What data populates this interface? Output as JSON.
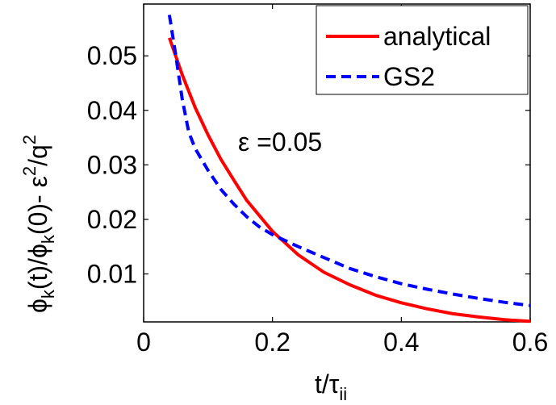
{
  "chart_data": {
    "type": "line",
    "xlabel": {
      "base": "t/τ",
      "sub": "ii"
    },
    "ylabel": {
      "parts": [
        "ϕ",
        "k",
        "(t)/ϕ",
        "k",
        "(0)- ε",
        "2",
        "/q",
        "2"
      ]
    },
    "xlim": [
      0,
      0.6
    ],
    "ylim": [
      0.0012,
      0.0595
    ],
    "x_ticks": [
      0,
      0.2,
      0.4,
      0.6
    ],
    "x_tick_labels": [
      "0",
      "0.2",
      "0.4",
      "0.6"
    ],
    "y_ticks": [
      0.01,
      0.02,
      0.03,
      0.04,
      0.05
    ],
    "y_tick_labels": [
      "0.01",
      "0.02",
      "0.03",
      "0.04",
      "0.05"
    ],
    "grid": false,
    "legend_position": "top-right",
    "annotation": "ε =0.05",
    "series": [
      {
        "name": "analytical",
        "color": "#ff0000",
        "style": "solid",
        "x": [
          0.04,
          0.06,
          0.08,
          0.1,
          0.12,
          0.14,
          0.16,
          0.2,
          0.24,
          0.28,
          0.32,
          0.36,
          0.4,
          0.44,
          0.48,
          0.52,
          0.56,
          0.6
        ],
        "y": [
          0.0533,
          0.0465,
          0.0405,
          0.0355,
          0.031,
          0.0272,
          0.0235,
          0.0178,
          0.0135,
          0.0103,
          0.008,
          0.0061,
          0.0047,
          0.0036,
          0.0027,
          0.0021,
          0.0016,
          0.0013
        ]
      },
      {
        "name": "GS2",
        "color": "#0000ff",
        "style": "dashed",
        "x": [
          0.04,
          0.05,
          0.06,
          0.07,
          0.08,
          0.1,
          0.12,
          0.14,
          0.16,
          0.18,
          0.2,
          0.24,
          0.28,
          0.32,
          0.36,
          0.4,
          0.44,
          0.48,
          0.52,
          0.56,
          0.6
        ],
        "y": [
          0.0575,
          0.05,
          0.042,
          0.036,
          0.033,
          0.029,
          0.0255,
          0.0228,
          0.0205,
          0.0186,
          0.0172,
          0.015,
          0.013,
          0.011,
          0.0095,
          0.0082,
          0.0072,
          0.0063,
          0.0055,
          0.0048,
          0.0042
        ]
      }
    ]
  }
}
